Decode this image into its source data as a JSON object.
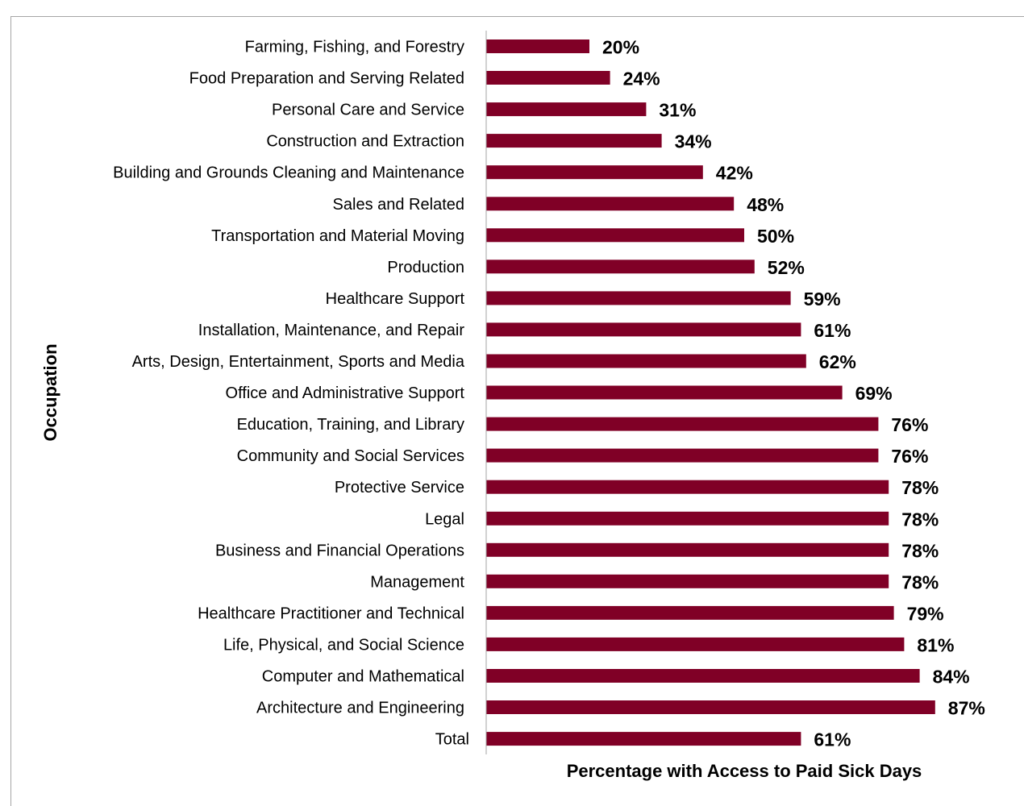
{
  "chart_data": {
    "type": "bar",
    "orientation": "horizontal",
    "title": "",
    "xlabel": "Percentage with Access to Paid Sick Days",
    "ylabel": "Occupation",
    "xlim": [
      0,
      100
    ],
    "bar_color": "#800026",
    "axis_color": "#a6a6a6",
    "grid": false,
    "legend": "none",
    "categories": [
      "Farming, Fishing, and Forestry",
      "Food Preparation and Serving Related",
      "Personal Care and Service",
      "Construction and Extraction",
      "Building and Grounds Cleaning and Maintenance",
      "Sales and Related",
      "Transportation and Material Moving",
      "Production",
      "Healthcare Support",
      "Installation, Maintenance, and Repair",
      "Arts, Design, Entertainment, Sports and Media",
      "Office and Administrative Support",
      "Education, Training, and Library",
      "Community and Social Services",
      "Protective Service",
      "Legal",
      "Business and Financial Operations",
      "Management",
      "Healthcare Practitioner and Technical",
      "Life, Physical, and Social Science",
      "Computer and Mathematical",
      "Architecture and Engineering",
      "Total"
    ],
    "values": [
      20,
      24,
      31,
      34,
      42,
      48,
      50,
      52,
      59,
      61,
      62,
      69,
      76,
      76,
      78,
      78,
      78,
      78,
      79,
      81,
      84,
      87,
      61
    ],
    "value_labels": [
      "20%",
      "24%",
      "31%",
      "34%",
      "42%",
      "48%",
      "50%",
      "52%",
      "59%",
      "61%",
      "62%",
      "69%",
      "76%",
      "76%",
      "78%",
      "78%",
      "78%",
      "78%",
      "79%",
      "81%",
      "84%",
      "87%",
      "61%"
    ]
  }
}
